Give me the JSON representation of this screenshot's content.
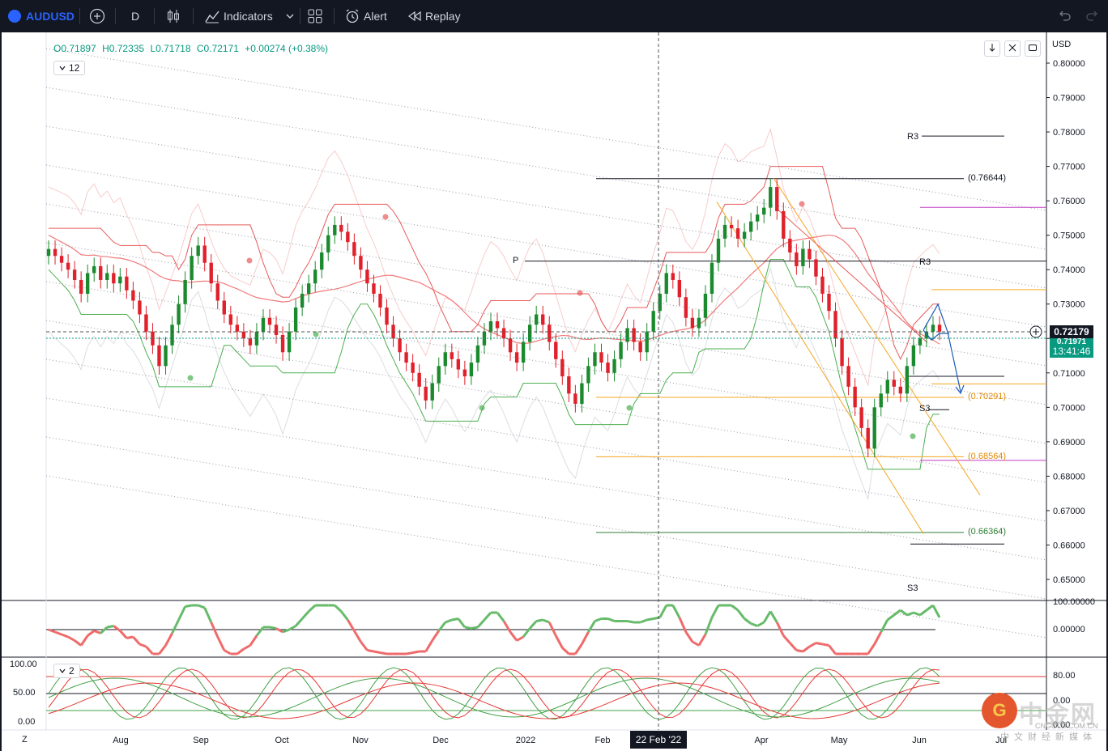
{
  "toolbar": {
    "symbol": "AUDUSD",
    "interval": "D",
    "indicators_label": "Indicators",
    "alert_label": "Alert",
    "replay_label": "Replay"
  },
  "legend": {
    "open": "O0.71897",
    "high": "H0.72335",
    "low": "L0.71718",
    "close": "C0.72171",
    "change": "+0.00274 (+0.38%)",
    "badge_main": "12",
    "badge_osc": "2"
  },
  "price_scale": {
    "currency": "USD",
    "current_price": "0.72179",
    "countdown": "13:41:46",
    "prev_price": "0.71971"
  },
  "crosshair": {
    "date_label": "22 Feb '22"
  },
  "levels": {
    "p": "P",
    "r3_top": "R3",
    "r3_mid": "R3",
    "s3_low": "S3",
    "s3_mid": "S3"
  },
  "fib_labels": [
    "(0.76644)",
    "(0.70291)",
    "(0.68564)",
    "(0.66364)"
  ],
  "osc1_scale": [
    "100.00000",
    "0.00000"
  ],
  "osc2_scale_left": [
    "100.00",
    "50.00",
    "0.00"
  ],
  "osc2_scale_right": [
    "80.00",
    "0.00",
    "0.00"
  ],
  "bottom_left_label": "Z",
  "watermark": {
    "brand": "中金网",
    "domain": "CNGOLD.COM.CN",
    "tagline": "中文财经新媒体"
  },
  "chart_data": {
    "type": "candlestick",
    "symbol": "AUDUSD",
    "currency": "USD",
    "interval": "D",
    "y_ticks": [
      "0.80000",
      "0.79000",
      "0.78000",
      "0.77000",
      "0.76000",
      "0.75000",
      "0.74000",
      "0.73000",
      "0.72000",
      "0.71000",
      "0.70000",
      "0.69000",
      "0.68000",
      "0.67000",
      "0.66000",
      "0.65000"
    ],
    "ylim": [
      0.643,
      0.8055
    ],
    "x_ticks": [
      "Aug",
      "Sep",
      "Oct",
      "Nov",
      "Dec",
      "2022",
      "Feb",
      "Apr",
      "May",
      "Jun",
      "Jul"
    ],
    "pivot_level": 0.7425,
    "fib_levels": [
      0.76644,
      0.70291,
      0.68564,
      0.66364
    ],
    "current_price": 0.72179,
    "ohlc_last": {
      "open": 0.71897,
      "high": 0.72335,
      "low": 0.71718,
      "close": 0.72171,
      "change": 0.00274,
      "change_pct": 0.38
    },
    "closes": [
      0.746,
      0.744,
      0.742,
      0.74,
      0.737,
      0.733,
      0.739,
      0.741,
      0.737,
      0.739,
      0.736,
      0.738,
      0.734,
      0.731,
      0.727,
      0.722,
      0.718,
      0.712,
      0.718,
      0.724,
      0.73,
      0.737,
      0.744,
      0.747,
      0.742,
      0.736,
      0.731,
      0.727,
      0.724,
      0.722,
      0.72,
      0.718,
      0.722,
      0.726,
      0.724,
      0.721,
      0.716,
      0.722,
      0.729,
      0.733,
      0.736,
      0.74,
      0.745,
      0.75,
      0.753,
      0.751,
      0.748,
      0.744,
      0.74,
      0.736,
      0.733,
      0.729,
      0.724,
      0.72,
      0.716,
      0.713,
      0.71,
      0.706,
      0.702,
      0.707,
      0.712,
      0.716,
      0.714,
      0.711,
      0.709,
      0.713,
      0.718,
      0.722,
      0.725,
      0.723,
      0.72,
      0.716,
      0.713,
      0.719,
      0.724,
      0.727,
      0.724,
      0.719,
      0.714,
      0.709,
      0.704,
      0.701,
      0.707,
      0.712,
      0.716,
      0.713,
      0.71,
      0.714,
      0.719,
      0.723,
      0.719,
      0.716,
      0.722,
      0.728,
      0.733,
      0.739,
      0.737,
      0.732,
      0.726,
      0.723,
      0.726,
      0.733,
      0.742,
      0.749,
      0.753,
      0.752,
      0.749,
      0.751,
      0.754,
      0.756,
      0.758,
      0.764,
      0.757,
      0.749,
      0.745,
      0.741,
      0.746,
      0.743,
      0.738,
      0.733,
      0.728,
      0.72,
      0.712,
      0.706,
      0.7,
      0.694,
      0.688,
      0.7,
      0.704,
      0.708,
      0.706,
      0.704,
      0.712,
      0.718,
      0.72,
      0.722,
      0.724,
      0.722
    ]
  }
}
